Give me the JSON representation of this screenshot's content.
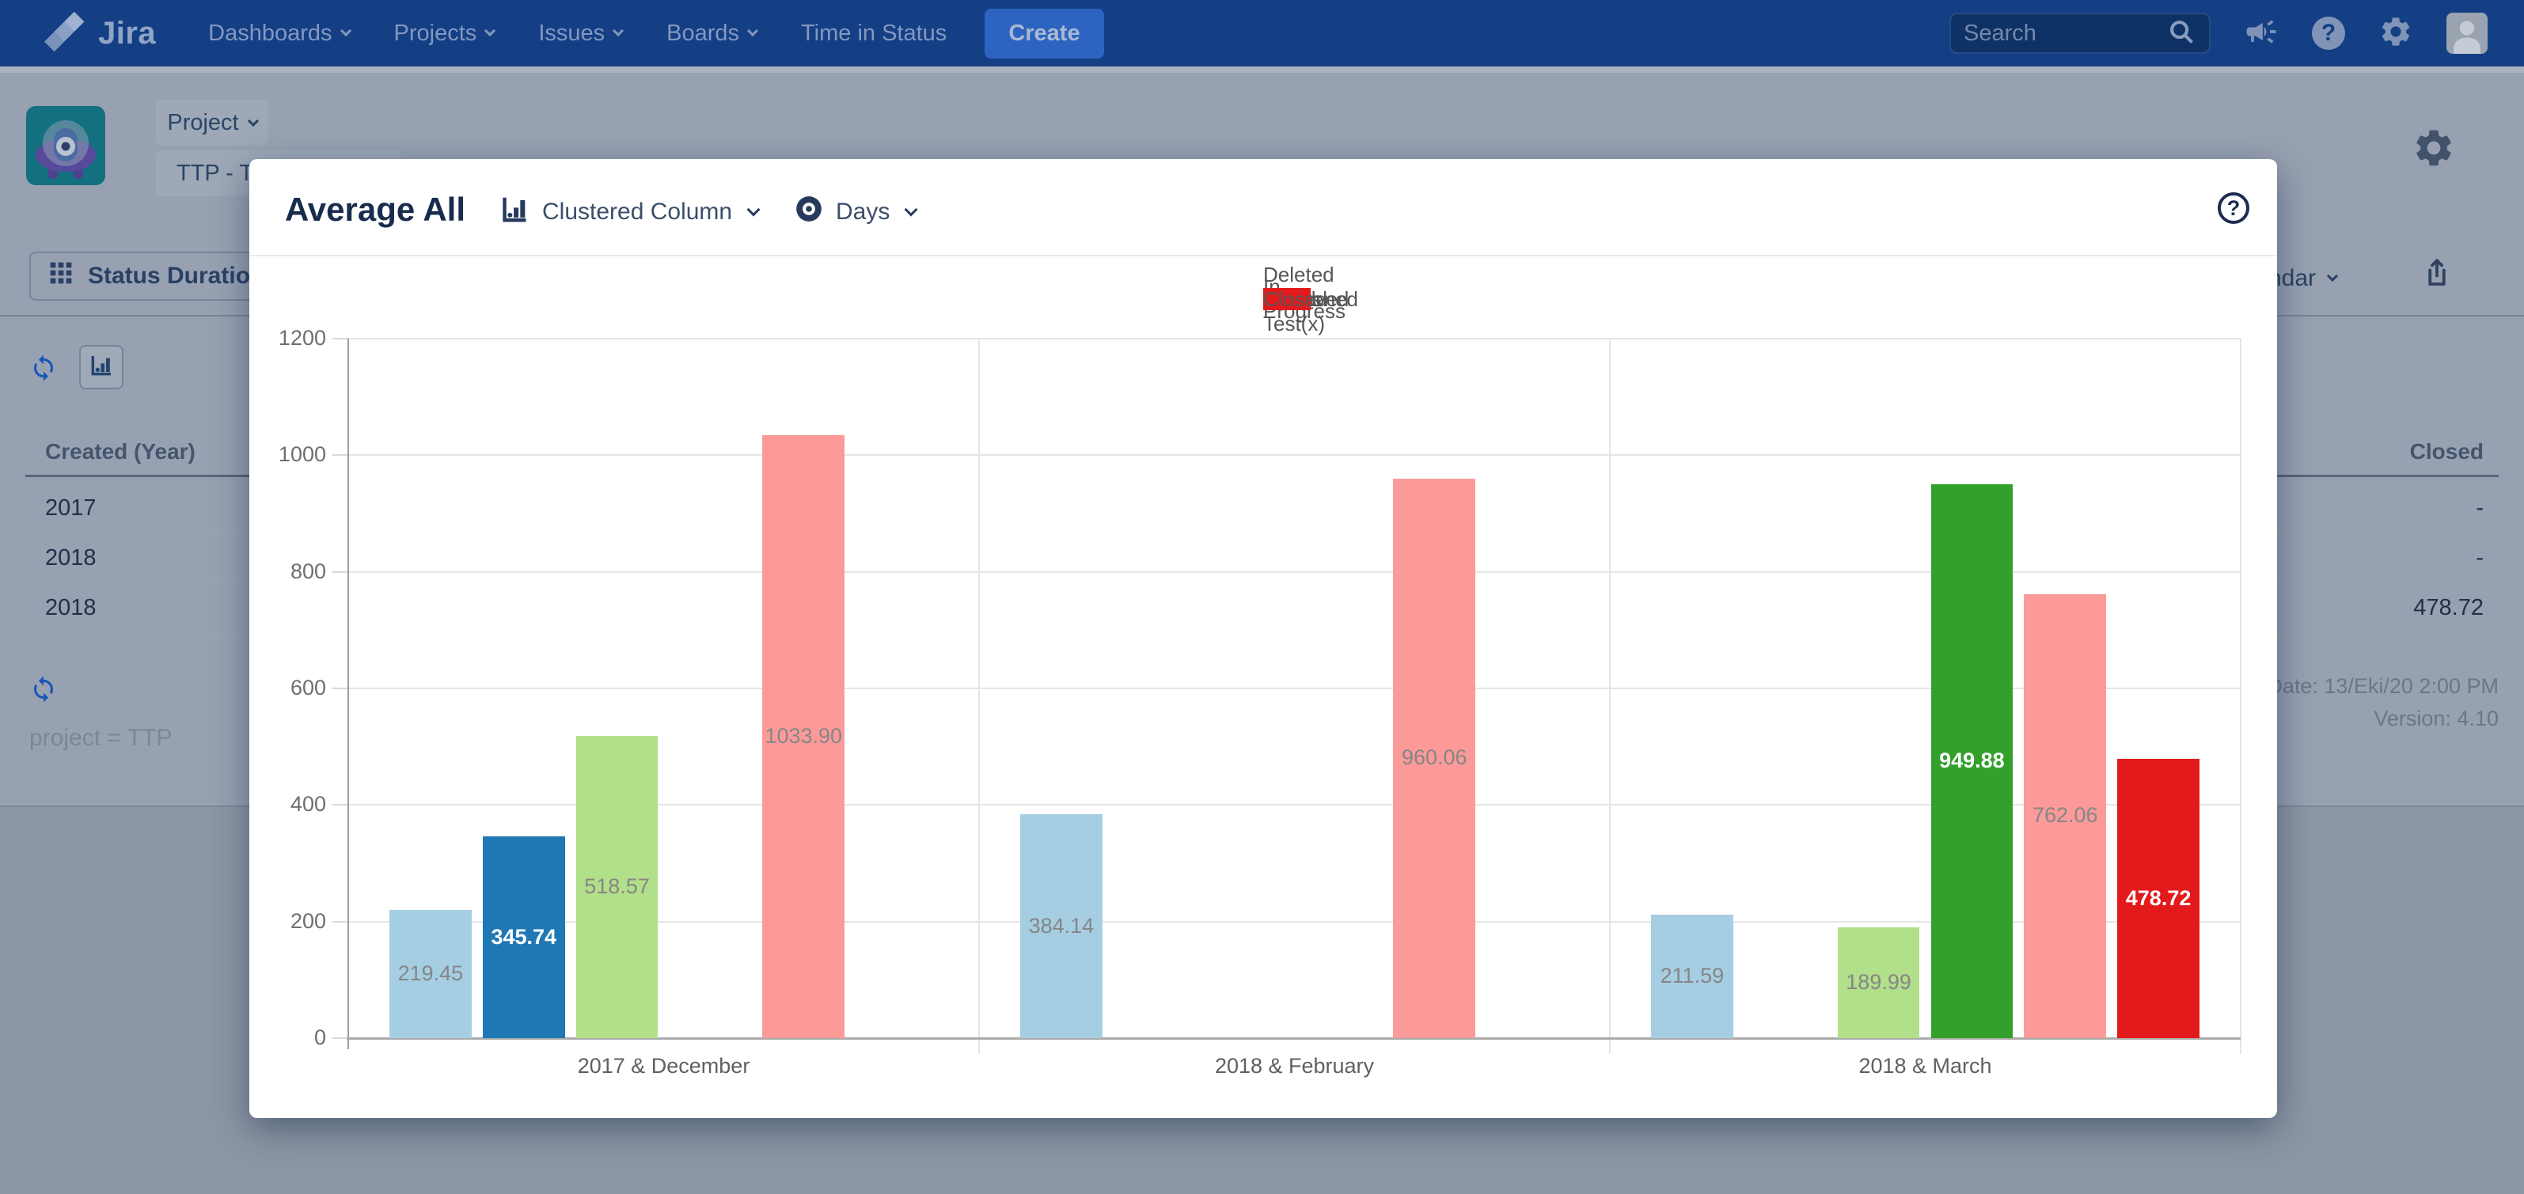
{
  "nav": {
    "brand": "Jira",
    "logo_icon": "jira-logo-icon",
    "items": [
      {
        "label": "Dashboards",
        "chevron": true
      },
      {
        "label": "Projects",
        "chevron": true
      },
      {
        "label": "Issues",
        "chevron": true
      },
      {
        "label": "Boards",
        "chevron": true
      },
      {
        "label": "Time in Status",
        "chevron": false
      }
    ],
    "create_label": "Create",
    "search_placeholder": "Search",
    "right_icons": [
      "search-icon",
      "announcement-icon",
      "help-icon",
      "settings-icon",
      "user-avatar"
    ]
  },
  "page": {
    "project_avatar_icon": "project-avatar-ufo",
    "project_menu_label": "Project",
    "project_key": "TTP - TIS",
    "tab_label": "Status Duration",
    "tab_icon": "grid-icon",
    "settings_icon": "settings-gear-icon",
    "calendar_label": "Calendar",
    "export_icon": "export-icon",
    "refresh_icon": "refresh-icon",
    "chart_toggle_icon": "bar-chart-icon",
    "table": {
      "left_header": "Created (Year)",
      "right_header": "Closed",
      "rows": [
        {
          "year": "2017",
          "closed": "-"
        },
        {
          "year": "2018",
          "closed": "-"
        },
        {
          "year": "2018",
          "closed": "478.72"
        }
      ]
    },
    "filter_text": "project = TTP",
    "report_date": "Report Date: 13/Eki/20 2:00 PM",
    "version": "Version: 4.10"
  },
  "modal": {
    "title": "Average All",
    "chart_type_label": "Clustered Column",
    "chart_type_icon": "column-chart-icon",
    "unit_label": "Days",
    "unit_icon": "eye-icon",
    "help_icon": "help-circle-icon"
  },
  "chart_data": {
    "type": "bar",
    "title": "Average All",
    "unit": "Days",
    "categories": [
      "2017 & December",
      "2018 & February",
      "2018 & March"
    ],
    "series": [
      {
        "name": "Open",
        "color": "#a6cee3",
        "dark": false,
        "values": [
          219.45,
          384.14,
          211.59
        ]
      },
      {
        "name": "Deleted Status Test(x)",
        "color": "#1f78b4",
        "dark": true,
        "values": [
          345.74,
          null,
          null
        ]
      },
      {
        "name": "In Progress",
        "color": "#b2df8a",
        "dark": false,
        "values": [
          518.57,
          null,
          189.99
        ]
      },
      {
        "name": "Reopened",
        "color": "#33a02c",
        "dark": true,
        "values": [
          null,
          null,
          949.88
        ]
      },
      {
        "name": "Resolved",
        "color": "#fb9a99",
        "dark": false,
        "values": [
          1033.9,
          960.06,
          762.06
        ]
      },
      {
        "name": "Closed",
        "color": "#e31a1c",
        "dark": true,
        "values": [
          null,
          null,
          478.72
        ]
      }
    ],
    "ylim": [
      0,
      1200
    ],
    "yticks": [
      0,
      200,
      400,
      600,
      800,
      1000,
      1200
    ],
    "grid": true,
    "legend_position": "top"
  }
}
